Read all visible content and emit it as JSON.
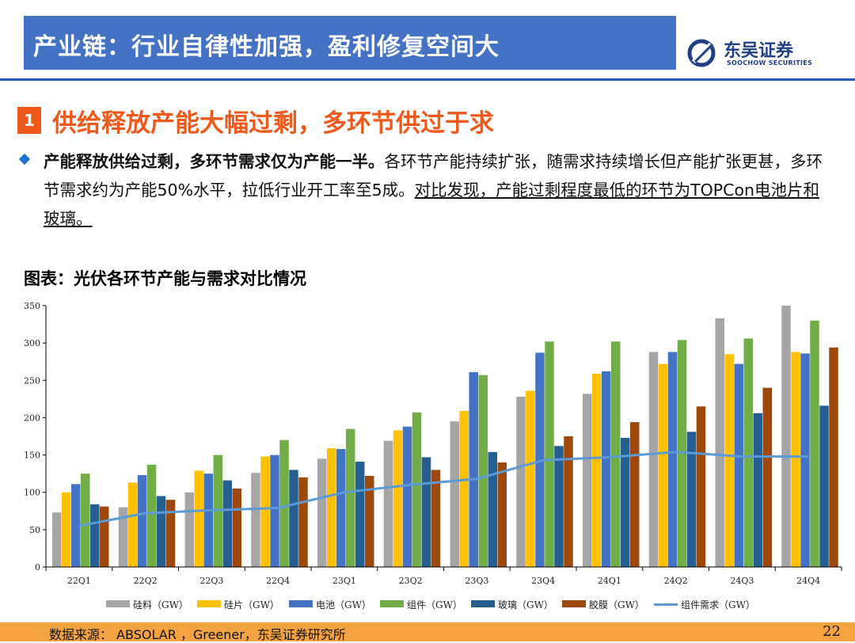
{
  "header": {
    "title": "产业链：行业自律性加强，盈利修复空间大",
    "brand_cn": "东吴证券",
    "brand_en": "SOOCHOW SECURITIES"
  },
  "section": {
    "number": "1",
    "title": "供给释放产能大幅过剩，多环节供过于求"
  },
  "bullet": {
    "bold": "产能释放供给过剩，多环节需求仅为产能一半。",
    "normal": "各环节产能持续扩张，随需求持续增长但产能扩张更甚，多环节需求约为产能50%水平，拉低行业开工率至5成。",
    "underlined": "对比发现，产能过剩程度最低的环节为TOPCon电池片和玻璃。"
  },
  "chart_title": "图表：光伏各环节产能与需求对比情况",
  "colors": {
    "title_bar": "#4472c4",
    "accent_orange": "#ed5a1c",
    "footer": "#f4a340"
  },
  "chart_data": {
    "type": "bar",
    "categories": [
      "22Q1",
      "22Q2",
      "22Q3",
      "22Q4",
      "23Q1",
      "23Q2",
      "23Q3",
      "23Q4",
      "24Q1",
      "24Q2",
      "24Q3",
      "24Q4"
    ],
    "ylim": [
      0,
      350
    ],
    "yticks": [
      0,
      50,
      100,
      150,
      200,
      250,
      300,
      350
    ],
    "grid": false,
    "legend_position": "bottom",
    "series": [
      {
        "name": "硅料（GW）",
        "type": "bar",
        "color": "#a5a5a5",
        "values": [
          73,
          80,
          100,
          126,
          145,
          169,
          195,
          228,
          232,
          288,
          333,
          350
        ]
      },
      {
        "name": "硅片（GW）",
        "type": "bar",
        "color": "#ffc000",
        "values": [
          100,
          113,
          129,
          148,
          159,
          183,
          209,
          236,
          259,
          272,
          285,
          288
        ]
      },
      {
        "name": "电池（GW）",
        "type": "bar",
        "color": "#4472c4",
        "values": [
          111,
          123,
          125,
          150,
          158,
          188,
          261,
          287,
          262,
          288,
          272,
          286
        ]
      },
      {
        "name": "组件（GW）",
        "type": "bar",
        "color": "#70ad47",
        "values": [
          125,
          137,
          150,
          170,
          185,
          207,
          257,
          302,
          302,
          304,
          306,
          330
        ]
      },
      {
        "name": "玻璃（GW）",
        "type": "bar",
        "color": "#255e91",
        "values": [
          84,
          95,
          116,
          130,
          141,
          147,
          154,
          162,
          173,
          181,
          206,
          216
        ]
      },
      {
        "name": "胶膜（GW）",
        "type": "bar",
        "color": "#9e480e",
        "values": [
          81,
          90,
          105,
          120,
          122,
          130,
          140,
          175,
          194,
          215,
          240,
          294
        ]
      },
      {
        "name": "组件需求（GW）",
        "type": "line",
        "color": "#5b9bd5",
        "values": [
          55,
          72,
          76,
          79,
          100,
          110,
          118,
          143,
          147,
          154,
          148,
          148
        ]
      }
    ]
  },
  "footer": {
    "source": "数据来源： ABSOLAR ，Greener，东吴证券研究所",
    "page": "22"
  }
}
